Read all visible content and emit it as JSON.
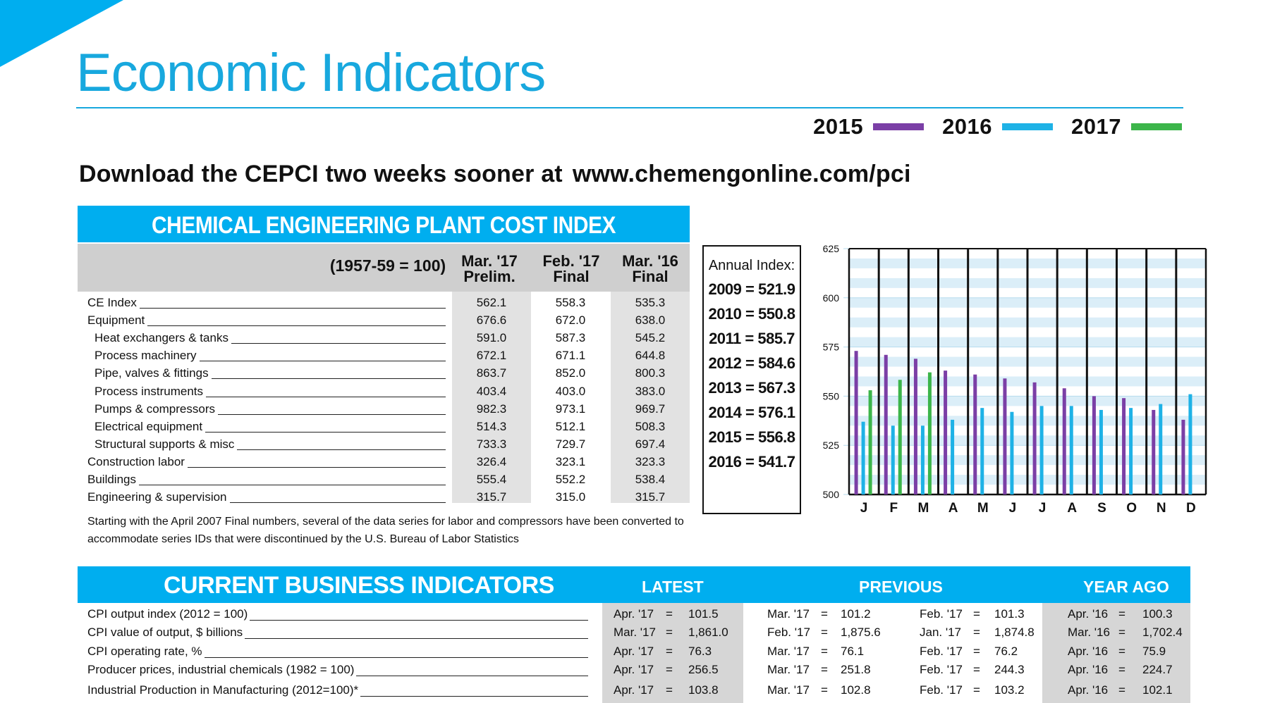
{
  "page": {
    "title": "Economic Indicators",
    "legend": [
      {
        "year": "2015",
        "color": "#7b3fa6"
      },
      {
        "year": "2016",
        "color": "#1eb2e6"
      },
      {
        "year": "2017",
        "color": "#3cb54a"
      }
    ],
    "download_text": "Download the CEPCI two weeks sooner at",
    "download_url": "www.chemengonline.com/pci",
    "accent_color": "#00aeef"
  },
  "cepci": {
    "header": "CHEMICAL ENGINEERING PLANT COST INDEX (CEPCI)",
    "base": "(1957-59 = 100)",
    "columns": [
      {
        "line1": "Mar. '17",
        "line2": "Prelim."
      },
      {
        "line1": "Feb. '17",
        "line2": "Final"
      },
      {
        "line1": "Mar. '16",
        "line2": "Final"
      }
    ],
    "rows": [
      {
        "label": "CE Index",
        "indent": false,
        "values": [
          "562.1",
          "558.3",
          "535.3"
        ]
      },
      {
        "label": "Equipment",
        "indent": false,
        "values": [
          "676.6",
          "672.0",
          "638.0"
        ]
      },
      {
        "label": "Heat exchangers & tanks",
        "indent": true,
        "values": [
          "591.0",
          "587.3",
          "545.2"
        ]
      },
      {
        "label": "Process machinery",
        "indent": true,
        "values": [
          "672.1",
          "671.1",
          "644.8"
        ]
      },
      {
        "label": "Pipe, valves & fittings",
        "indent": true,
        "values": [
          "863.7",
          "852.0",
          "800.3"
        ]
      },
      {
        "label": "Process instruments",
        "indent": true,
        "values": [
          "403.4",
          "403.0",
          "383.0"
        ]
      },
      {
        "label": "Pumps & compressors",
        "indent": true,
        "values": [
          "982.3",
          "973.1",
          "969.7"
        ]
      },
      {
        "label": "Electrical equipment",
        "indent": true,
        "values": [
          "514.3",
          "512.1",
          "508.3"
        ]
      },
      {
        "label": "Structural supports & misc",
        "indent": true,
        "values": [
          "733.3",
          "729.7",
          "697.4"
        ]
      },
      {
        "label": "Construction labor",
        "indent": false,
        "values": [
          "326.4",
          "323.1",
          "323.3"
        ]
      },
      {
        "label": "Buildings",
        "indent": false,
        "values": [
          "555.4",
          "552.2",
          "538.4"
        ]
      },
      {
        "label": "Engineering & supervision",
        "indent": false,
        "values": [
          "315.7",
          "315.0",
          "315.7"
        ]
      }
    ],
    "note_line1": "Starting with the April 2007 Final numbers, several of the data series for labor and compressors have been converted to",
    "note_line2": "accommodate series IDs that were discontinued by the U.S. Bureau of Labor Statistics"
  },
  "annual": {
    "title": "Annual Index:",
    "items": [
      "2009 = 521.9",
      "2010 = 550.8",
      "2011 = 585.7",
      "2012 = 584.6",
      "2013 = 567.3",
      "2014 = 576.1",
      "2015 = 556.8",
      "2016 = 541.7"
    ]
  },
  "chart_data": {
    "type": "bar",
    "categories": [
      "J",
      "F",
      "M",
      "A",
      "M",
      "J",
      "J",
      "A",
      "S",
      "O",
      "N",
      "D"
    ],
    "series": [
      {
        "name": "2015",
        "color": "#7b3fa6",
        "values": [
          573,
          571,
          569,
          563,
          561,
          559,
          557,
          554,
          550,
          549,
          543,
          538
        ]
      },
      {
        "name": "2016",
        "color": "#1eb2e6",
        "values": [
          537,
          535,
          535,
          538,
          544,
          542,
          545,
          545,
          543,
          544,
          546,
          551
        ]
      },
      {
        "name": "2017",
        "color": "#3cb54a",
        "values": [
          553,
          558.3,
          562.1,
          null,
          null,
          null,
          null,
          null,
          null,
          null,
          null,
          null
        ]
      }
    ],
    "yticks": [
      "500",
      "525",
      "550",
      "575",
      "600",
      "625"
    ],
    "ylim": [
      500,
      625
    ],
    "grid": true
  },
  "cbi": {
    "header": "CURRENT BUSINESS INDICATORS",
    "col_latest": "LATEST",
    "col_previous": "PREVIOUS",
    "col_year_ago": "YEAR AGO",
    "rows": [
      {
        "label": "CPI output index (2012 = 100)",
        "cells": [
          [
            "Apr. '17",
            "=",
            "101.5"
          ],
          [
            "Mar. '17",
            "=",
            "101.2"
          ],
          [
            "Feb. '17",
            "=",
            "101.3"
          ],
          [
            "Apr. '16",
            "=",
            "100.3"
          ]
        ]
      },
      {
        "label": "CPI value of output, $ billions",
        "cells": [
          [
            "Mar. '17",
            "=",
            "1,861.0"
          ],
          [
            "Feb. '17",
            "=",
            "1,875.6"
          ],
          [
            "Jan. '17",
            "=",
            "1,874.8"
          ],
          [
            "Mar. '16",
            "=",
            "1,702.4"
          ]
        ]
      },
      {
        "label": "CPI operating rate, %",
        "cells": [
          [
            "Apr. '17",
            "=",
            "76.3"
          ],
          [
            "Mar. '17",
            "=",
            "76.1"
          ],
          [
            "Feb. '17",
            "=",
            "76.2"
          ],
          [
            "Apr. '16",
            "=",
            "75.9"
          ]
        ]
      },
      {
        "label": "Producer prices, industrial chemicals (1982 = 100)",
        "cells": [
          [
            "Apr. '17",
            "=",
            "256.5"
          ],
          [
            "Mar. '17",
            "=",
            "251.8"
          ],
          [
            "Feb. '17",
            "=",
            "244.3"
          ],
          [
            "Apr. '16",
            "=",
            "224.7"
          ]
        ]
      },
      {
        "label": "Industrial Production in Manufacturing (2012=100)*",
        "cells": [
          [
            "Apr. '17",
            "=",
            "103.8"
          ],
          [
            "Mar. '17",
            "=",
            "102.8"
          ],
          [
            "Feb. '17",
            "=",
            "103.2"
          ],
          [
            "Apr. '16",
            "=",
            "102.1"
          ]
        ]
      }
    ]
  }
}
